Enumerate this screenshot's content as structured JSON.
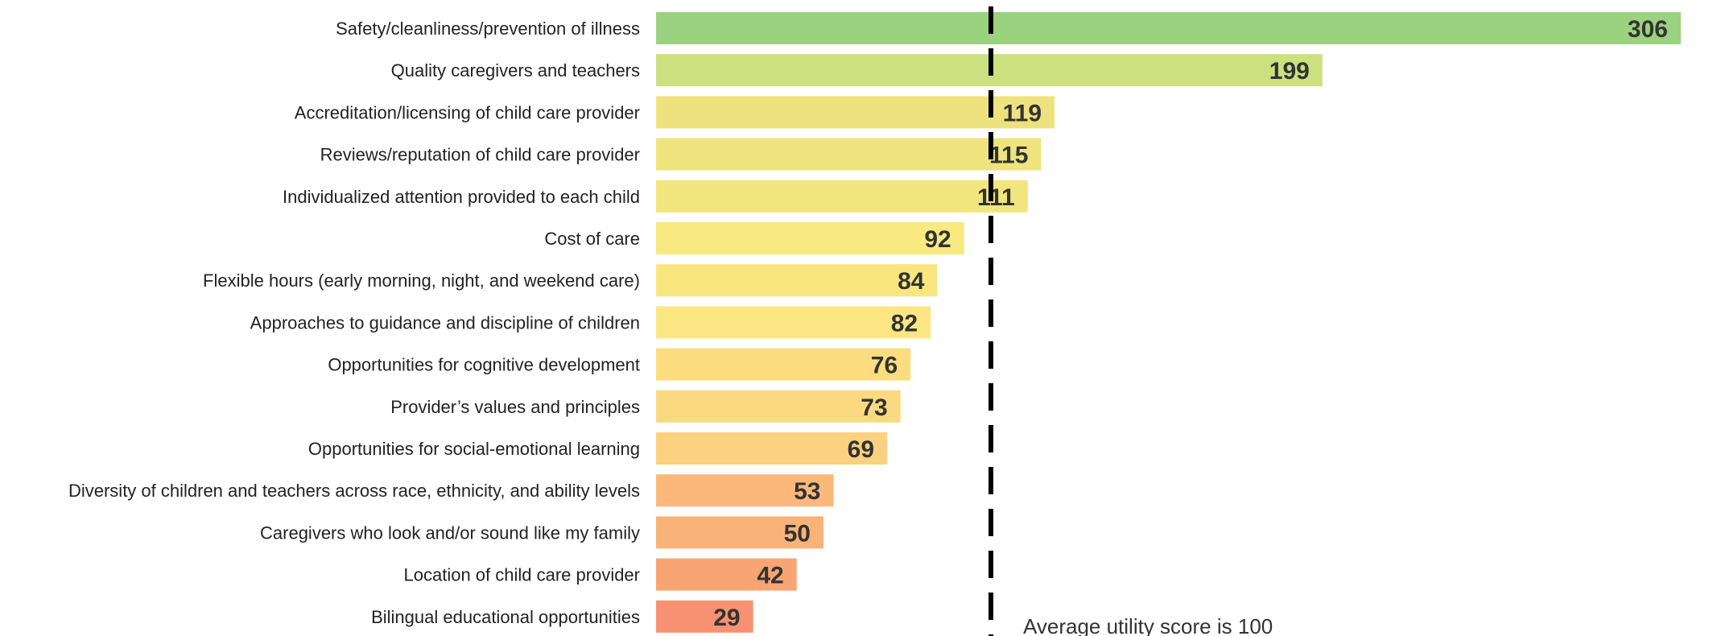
{
  "chart_data": {
    "type": "bar",
    "orientation": "horizontal",
    "categories": [
      "Safety/cleanliness/prevention of illness",
      "Quality caregivers and teachers",
      "Accreditation/licensing of child care provider",
      "Reviews/reputation of child care provider",
      "Individualized attention provided to each child",
      "Cost of care",
      "Flexible hours (early morning, night, and weekend care)",
      "Approaches to guidance and discipline of children",
      "Opportunities for cognitive development",
      "Provider’s values and principles",
      "Opportunities for social-emotional learning",
      "Diversity of children and teachers across race, ethnicity, and ability levels",
      "Caregivers who look and/or sound like my family",
      "Location of child care provider",
      "Bilingual educational opportunities"
    ],
    "values": [
      306,
      199,
      119,
      115,
      111,
      92,
      84,
      82,
      76,
      73,
      69,
      53,
      50,
      42,
      29
    ],
    "colors": [
      "#9bd27f",
      "#cde07f",
      "#eee27e",
      "#efe37e",
      "#f1e67e",
      "#f8e981",
      "#fae67f",
      "#fbe683",
      "#fbdd80",
      "#fbd980",
      "#fbd07f",
      "#fbb87a",
      "#f9b378",
      "#f9a473",
      "#f79172"
    ],
    "reference_line": {
      "value": 100,
      "label": "Average utility score is 100",
      "style": "dashed",
      "color": "#000000"
    },
    "xlim": [
      0,
      320
    ],
    "grid": false,
    "legend": "none",
    "title": "",
    "xlabel": "",
    "ylabel": ""
  }
}
